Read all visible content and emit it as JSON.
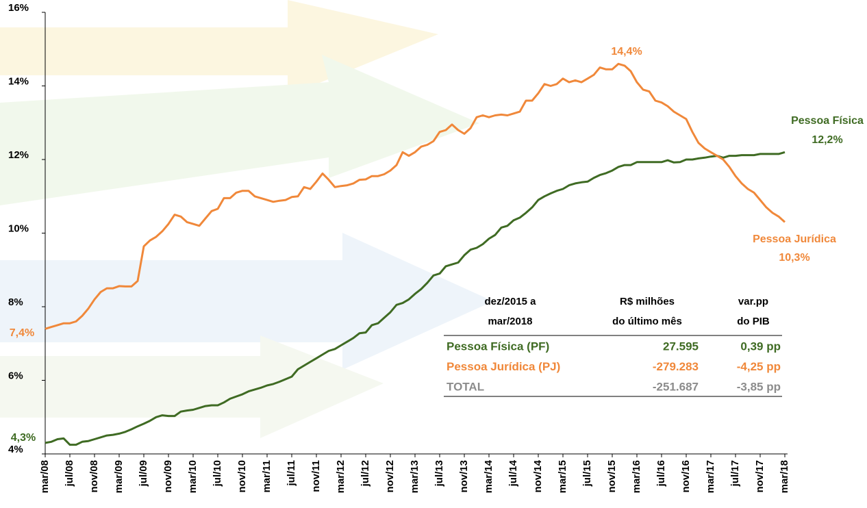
{
  "chart_data": {
    "type": "line",
    "categories": [
      "mar/08",
      null,
      null,
      null,
      "jul/08",
      null,
      null,
      null,
      "nov/08",
      null,
      null,
      null,
      "mar/09",
      null,
      null,
      null,
      "jul/09",
      null,
      null,
      null,
      "nov/09",
      null,
      null,
      null,
      "mar/10",
      null,
      null,
      null,
      "jul/10",
      null,
      null,
      null,
      "nov/10",
      null,
      null,
      null,
      "mar/11",
      null,
      null,
      null,
      "jul/11",
      null,
      null,
      null,
      "nov/11",
      null,
      null,
      null,
      "mar/12",
      null,
      null,
      null,
      "jul/12",
      null,
      null,
      null,
      "nov/12",
      null,
      null,
      null,
      "mar/13",
      null,
      null,
      null,
      "jul/13",
      null,
      null,
      null,
      "nov/13",
      null,
      null,
      null,
      "mar/14",
      null,
      null,
      null,
      "jul/14",
      null,
      null,
      null,
      "nov/14",
      null,
      null,
      null,
      "mar/15",
      null,
      null,
      null,
      "jul/15",
      null,
      null,
      null,
      "nov/15",
      null,
      null,
      null,
      "mar/16",
      null,
      null,
      null,
      "jul/16",
      null,
      null,
      null,
      "nov/16",
      null,
      null,
      null,
      "mar/17",
      null,
      null,
      null,
      "jul/17",
      null,
      null,
      null,
      "nov/17",
      null,
      null,
      null,
      "mar/18"
    ],
    "series": [
      {
        "name": "Pessoa Física",
        "color": "#3f6b23",
        "values": [
          4.3,
          4.33,
          4.4,
          4.42,
          4.25,
          4.25,
          4.33,
          4.35,
          4.4,
          4.45,
          4.5,
          4.52,
          4.55,
          4.6,
          4.67,
          4.75,
          4.82,
          4.9,
          5.0,
          5.05,
          5.03,
          5.03,
          5.15,
          5.18,
          5.2,
          5.25,
          5.3,
          5.32,
          5.32,
          5.4,
          5.5,
          5.56,
          5.62,
          5.7,
          5.75,
          5.8,
          5.86,
          5.9,
          5.96,
          6.03,
          6.1,
          6.3,
          6.4,
          6.5,
          6.6,
          6.7,
          6.8,
          6.85,
          6.95,
          7.05,
          7.15,
          7.28,
          7.3,
          7.5,
          7.55,
          7.7,
          7.85,
          8.05,
          8.1,
          8.2,
          8.35,
          8.48,
          8.65,
          8.85,
          8.9,
          9.1,
          9.15,
          9.2,
          9.4,
          9.55,
          9.6,
          9.7,
          9.85,
          9.95,
          10.15,
          10.2,
          10.35,
          10.42,
          10.55,
          10.7,
          10.9,
          11.0,
          11.08,
          11.15,
          11.2,
          11.3,
          11.35,
          11.38,
          11.4,
          11.5,
          11.58,
          11.63,
          11.7,
          11.8,
          11.85,
          11.85,
          11.93,
          11.93,
          11.93,
          11.93,
          11.93,
          11.98,
          11.92,
          11.93,
          12.0,
          12.0,
          12.03,
          12.05,
          12.08,
          12.1,
          12.05,
          12.1,
          12.1,
          12.12,
          12.12,
          12.12,
          12.15,
          12.15,
          12.15,
          12.15,
          12.2
        ]
      },
      {
        "name": "Pessoa Jurídica",
        "color": "#f0883a",
        "values": [
          7.4,
          7.45,
          7.5,
          7.55,
          7.55,
          7.6,
          7.75,
          7.95,
          8.2,
          8.4,
          8.5,
          8.5,
          8.56,
          8.55,
          8.55,
          8.7,
          9.64,
          9.8,
          9.9,
          10.05,
          10.25,
          10.5,
          10.45,
          10.3,
          10.25,
          10.2,
          10.4,
          10.6,
          10.66,
          10.95,
          10.95,
          11.1,
          11.15,
          11.15,
          11.0,
          10.95,
          10.9,
          10.85,
          10.88,
          10.9,
          10.98,
          11.0,
          11.25,
          11.2,
          11.4,
          11.62,
          11.45,
          11.25,
          11.28,
          11.3,
          11.35,
          11.45,
          11.46,
          11.55,
          11.55,
          11.6,
          11.7,
          11.85,
          12.2,
          12.1,
          12.2,
          12.35,
          12.4,
          12.5,
          12.75,
          12.8,
          12.95,
          12.8,
          12.7,
          12.85,
          13.15,
          13.2,
          13.15,
          13.2,
          13.22,
          13.2,
          13.25,
          13.3,
          13.6,
          13.6,
          13.8,
          14.05,
          14.0,
          14.05,
          14.2,
          14.1,
          14.15,
          14.1,
          14.2,
          14.3,
          14.5,
          14.45,
          14.45,
          14.6,
          14.55,
          14.4,
          14.1,
          13.9,
          13.85,
          13.6,
          13.55,
          13.45,
          13.3,
          13.2,
          13.1,
          12.75,
          12.45,
          12.3,
          12.2,
          12.1,
          12.0,
          11.8,
          11.55,
          11.35,
          11.2,
          11.1,
          10.9,
          10.7,
          10.55,
          10.45,
          10.3
        ]
      }
    ],
    "ylim": [
      4,
      16
    ],
    "yticks": [
      {
        "value": 4,
        "label": "4%"
      },
      {
        "value": 6,
        "label": "6%"
      },
      {
        "value": 8,
        "label": "8%"
      },
      {
        "value": 10,
        "label": "10%"
      },
      {
        "value": 12,
        "label": "12%"
      },
      {
        "value": 14,
        "label": "14%"
      },
      {
        "value": 16,
        "label": "16%"
      }
    ],
    "grid": false,
    "annotations": [
      "14,4%",
      "7,4%",
      "4,3%",
      "12,2%",
      "10,3%"
    ]
  },
  "table": {
    "header": [
      [
        "dez/2015 a",
        "mar/2018"
      ],
      [
        "R$ milhões",
        "do último mês"
      ],
      [
        "var.pp",
        "do PIB"
      ]
    ],
    "rows": [
      [
        "Pessoa Física (PF)",
        "27.595",
        "0,39 pp"
      ],
      [
        "Pessoa Jurídica (PJ)",
        "-279.283",
        "-4,25 pp"
      ],
      [
        "TOTAL",
        "-251.687",
        "-3,85 pp"
      ]
    ]
  }
}
